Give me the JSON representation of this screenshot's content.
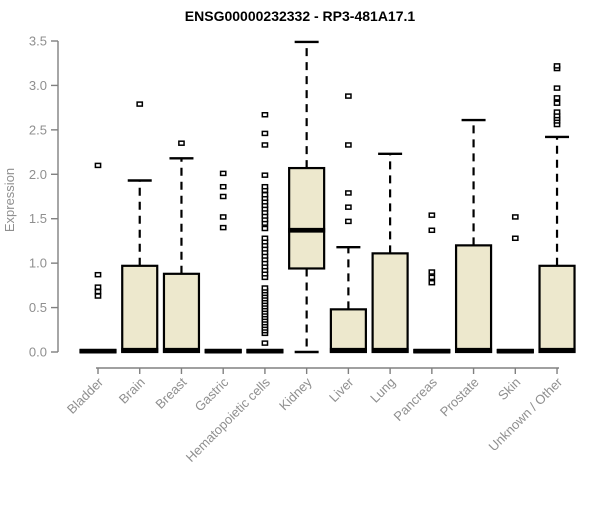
{
  "chart_data": {
    "type": "boxplot",
    "title": "ENSG00000232332 - RP3-481A17.1",
    "xlabel": "",
    "ylabel": "Expression",
    "ylim": [
      0,
      3.5
    ],
    "yticks": [
      0,
      0.5,
      1,
      1.5,
      2,
      2.5,
      3,
      3.5
    ],
    "grid": false,
    "x_tick_rotation": 45,
    "categories": [
      "Bladder",
      "Brain",
      "Breast",
      "Gastric",
      "Hematopoietic cells",
      "Kidney",
      "Liver",
      "Lung",
      "Pancreas",
      "Prostate",
      "Skin",
      "Unknown / Other"
    ],
    "boxes": [
      {
        "label": "Bladder",
        "q1": 0,
        "median": 0.01,
        "q3": 0.02,
        "whisker_low": 0,
        "whisker_high": 0.02,
        "outliers": [
          0.63,
          0.68,
          0.73,
          0.87,
          2.1
        ]
      },
      {
        "label": "Brain",
        "q1": 0,
        "median": 0.02,
        "q3": 0.97,
        "whisker_low": 0,
        "whisker_high": 1.93,
        "outliers": [
          2.79
        ]
      },
      {
        "label": "Breast",
        "q1": 0,
        "median": 0.02,
        "q3": 0.88,
        "whisker_low": 0,
        "whisker_high": 2.18,
        "outliers": [
          2.35
        ]
      },
      {
        "label": "Gastric",
        "q1": 0,
        "median": 0.01,
        "q3": 0.02,
        "whisker_low": 0,
        "whisker_high": 0.02,
        "outliers": [
          1.4,
          1.52,
          1.75,
          1.86,
          2.01
        ]
      },
      {
        "label": "Hematopoietic cells",
        "q1": 0,
        "median": 0.01,
        "q3": 0.02,
        "whisker_low": 0,
        "whisker_high": 0.02,
        "outliers": [
          0.1,
          0.21,
          0.24,
          0.27,
          0.3,
          0.33,
          0.36,
          0.39,
          0.42,
          0.45,
          0.48,
          0.51,
          0.54,
          0.57,
          0.6,
          0.63,
          0.66,
          0.69,
          0.72,
          0.84,
          0.88,
          0.92,
          0.96,
          1.0,
          1.04,
          1.08,
          1.12,
          1.16,
          1.2,
          1.24,
          1.28,
          1.39,
          1.45,
          1.49,
          1.53,
          1.57,
          1.61,
          1.65,
          1.69,
          1.73,
          1.77,
          1.82,
          1.86,
          1.99,
          2.33,
          2.46,
          2.67
        ]
      },
      {
        "label": "Kidney",
        "q1": 0.94,
        "median": 1.37,
        "q3": 2.07,
        "whisker_low": 0,
        "whisker_high": 3.49,
        "outliers": []
      },
      {
        "label": "Liver",
        "q1": 0,
        "median": 0.02,
        "q3": 0.48,
        "whisker_low": 0,
        "whisker_high": 1.18,
        "outliers": [
          1.47,
          1.63,
          1.79,
          2.33,
          2.88
        ]
      },
      {
        "label": "Lung",
        "q1": 0,
        "median": 0.02,
        "q3": 1.11,
        "whisker_low": 0,
        "whisker_high": 2.23,
        "outliers": []
      },
      {
        "label": "Pancreas",
        "q1": 0,
        "median": 0.01,
        "q3": 0.02,
        "whisker_low": 0,
        "whisker_high": 0.02,
        "outliers": [
          0.78,
          0.84,
          0.9,
          1.37,
          1.54
        ]
      },
      {
        "label": "Prostate",
        "q1": 0,
        "median": 0.02,
        "q3": 1.2,
        "whisker_low": 0,
        "whisker_high": 2.61,
        "outliers": []
      },
      {
        "label": "Skin",
        "q1": 0,
        "median": 0.01,
        "q3": 0.02,
        "whisker_low": 0,
        "whisker_high": 0.02,
        "outliers": [
          1.28,
          1.52
        ]
      },
      {
        "label": "Unknown / Other",
        "q1": 0,
        "median": 0.02,
        "q3": 0.97,
        "whisker_low": 0,
        "whisker_high": 2.42,
        "outliers": [
          2.56,
          2.6,
          2.63,
          2.66,
          2.7,
          2.8,
          2.86,
          2.97,
          3.19,
          3.22
        ]
      }
    ],
    "colors": {
      "box_fill": "#EDE8CD",
      "box_stroke": "#000000",
      "median": "#000000",
      "whisker": "#000000",
      "outlier_fill": "#FFFFFF",
      "outlier_stroke": "#000000",
      "axis": "#808080",
      "tick_text": "#8F8F8F",
      "title_text": "#000000"
    }
  }
}
